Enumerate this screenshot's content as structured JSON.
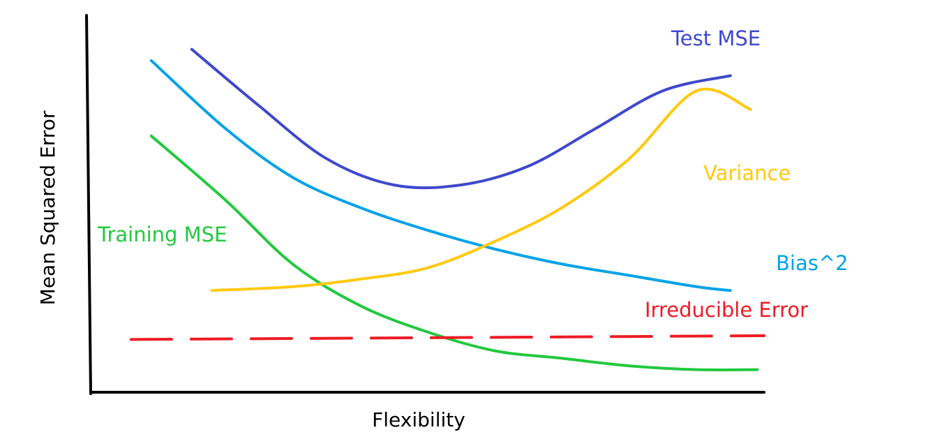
{
  "chart_data": {
    "type": "line",
    "title": "",
    "xlabel": "Flexibility",
    "ylabel": "Mean Squared Error",
    "xlim": [
      0,
      1
    ],
    "ylim": [
      0,
      1
    ],
    "grid": false,
    "ticks": false,
    "series": [
      {
        "name": "Test MSE",
        "color": "#3F48CC",
        "dashed": false,
        "x": [
          0.15,
          0.25,
          0.35,
          0.45,
          0.55,
          0.65,
          0.75,
          0.85,
          0.95
        ],
        "y": [
          0.91,
          0.76,
          0.62,
          0.55,
          0.55,
          0.6,
          0.7,
          0.8,
          0.84
        ]
      },
      {
        "name": "Bias^2",
        "color": "#00A2E8",
        "dashed": false,
        "x": [
          0.09,
          0.2,
          0.3,
          0.4,
          0.5,
          0.6,
          0.7,
          0.8,
          0.9,
          0.95
        ],
        "y": [
          0.88,
          0.7,
          0.57,
          0.49,
          0.43,
          0.38,
          0.34,
          0.31,
          0.28,
          0.27
        ]
      },
      {
        "name": "Training MSE",
        "color": "#22C93E",
        "dashed": false,
        "x": [
          0.09,
          0.2,
          0.3,
          0.4,
          0.5,
          0.6,
          0.7,
          0.8,
          0.9,
          0.99
        ],
        "y": [
          0.68,
          0.51,
          0.34,
          0.23,
          0.16,
          0.11,
          0.09,
          0.07,
          0.06,
          0.06
        ]
      },
      {
        "name": "Variance",
        "color": "#FFC90E",
        "dashed": false,
        "x": [
          0.18,
          0.3,
          0.4,
          0.5,
          0.6,
          0.7,
          0.8,
          0.9,
          0.98
        ],
        "y": [
          0.27,
          0.28,
          0.3,
          0.33,
          0.4,
          0.49,
          0.62,
          0.8,
          0.75
        ]
      },
      {
        "name": "Irreducible Error",
        "color": "#ED1C24",
        "dashed": true,
        "x": [
          0.06,
          1.0
        ],
        "y": [
          0.14,
          0.15
        ]
      }
    ]
  }
}
